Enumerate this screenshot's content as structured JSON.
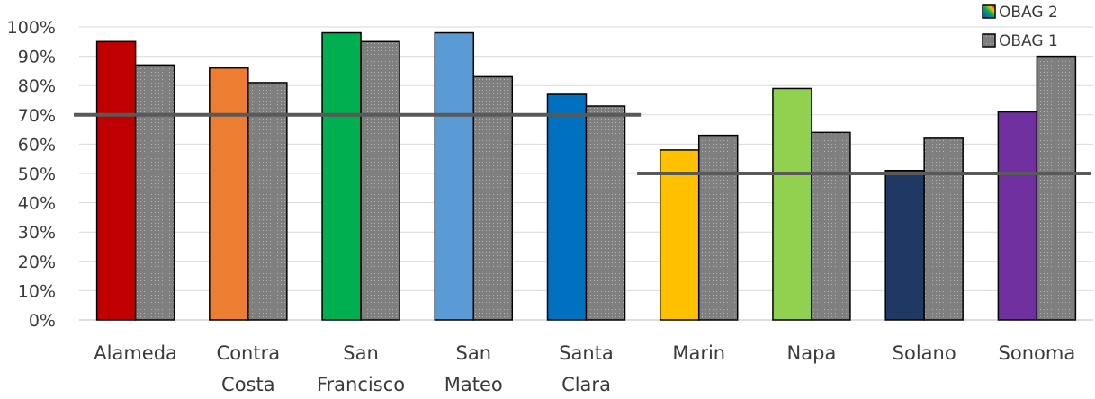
{
  "chart_data": {
    "type": "bar",
    "title": "",
    "xlabel": "",
    "ylabel": "",
    "ylim": [
      0,
      100
    ],
    "y_ticks": [
      "0%",
      "10%",
      "20%",
      "30%",
      "40%",
      "50%",
      "60%",
      "70%",
      "80%",
      "90%",
      "100%"
    ],
    "grid": true,
    "legend_position": "top-right",
    "categories": [
      [
        "Alameda"
      ],
      [
        "Contra",
        "Costa"
      ],
      [
        "San",
        "Francisco"
      ],
      [
        "San",
        "Mateo"
      ],
      [
        "Santa",
        "Clara"
      ],
      [
        "Marin"
      ],
      [
        "Napa"
      ],
      [
        "Solano"
      ],
      [
        "Sonoma"
      ]
    ],
    "series": [
      {
        "name": "OBAG 2",
        "values": [
          95,
          86,
          98,
          98,
          77,
          58,
          79,
          51,
          71
        ],
        "colors": [
          "#c00000",
          "#ed7d31",
          "#00b050",
          "#5b9bd5",
          "#0070c0",
          "#ffc000",
          "#92d050",
          "#1f3864",
          "#7030a0"
        ]
      },
      {
        "name": "OBAG 1",
        "values": [
          87,
          81,
          95,
          83,
          73,
          63,
          64,
          62,
          90
        ],
        "color": "#808080"
      }
    ],
    "reference_lines": [
      {
        "value": 70,
        "from_category": 0,
        "to_category": 4
      },
      {
        "value": 50,
        "from_category": 5,
        "to_category": 8
      }
    ],
    "colors": {
      "grid": "#d9d9d9",
      "axis": "#bfbfbf",
      "reference_line": "#595959",
      "bar_outline": "#000000"
    }
  }
}
